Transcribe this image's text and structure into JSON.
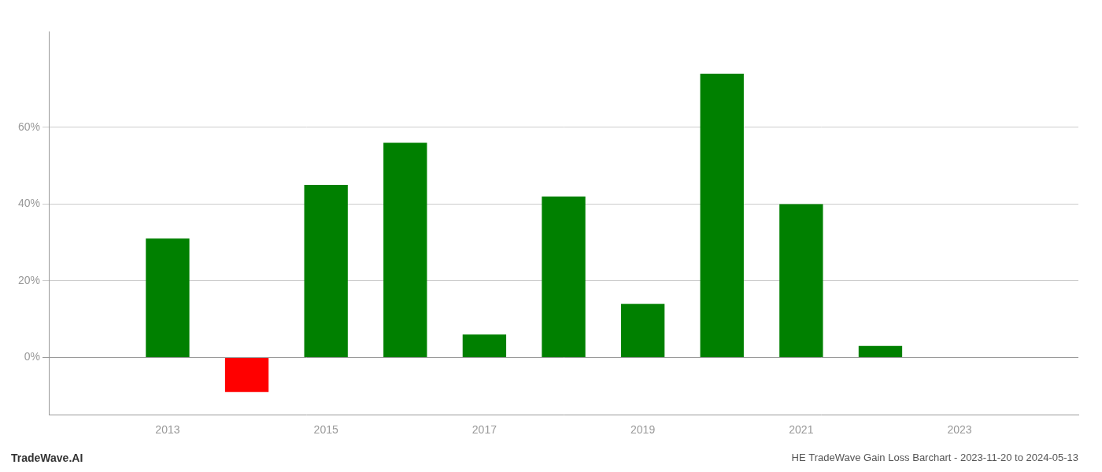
{
  "chart_data": {
    "type": "bar",
    "title": "HE TradeWave Gain Loss Barchart - 2023-11-20 to 2024-05-13",
    "annotations": [
      "TradeWave.AI"
    ],
    "x": [
      2013,
      2014,
      2015,
      2016,
      2017,
      2018,
      2019,
      2020,
      2021,
      2022
    ],
    "values": [
      0.31,
      -0.09,
      0.45,
      0.56,
      0.06,
      0.42,
      0.14,
      0.74,
      0.4,
      0.03
    ],
    "colors": [
      "#008000",
      "#ff0000",
      "#008000",
      "#008000",
      "#008000",
      "#008000",
      "#008000",
      "#008000",
      "#008000",
      "#008000"
    ],
    "xlim": [
      2011.5,
      2024.5
    ],
    "xticks": [
      2013,
      2015,
      2017,
      2019,
      2021,
      2023
    ],
    "ylim": [
      -0.15,
      0.85
    ],
    "yticks": [
      {
        "value": 0,
        "label": "0%"
      },
      {
        "value": 0.2,
        "label": "20%"
      },
      {
        "value": 0.4,
        "label": "40%"
      },
      {
        "value": 0.6,
        "label": "60%"
      }
    ],
    "grid": true
  }
}
